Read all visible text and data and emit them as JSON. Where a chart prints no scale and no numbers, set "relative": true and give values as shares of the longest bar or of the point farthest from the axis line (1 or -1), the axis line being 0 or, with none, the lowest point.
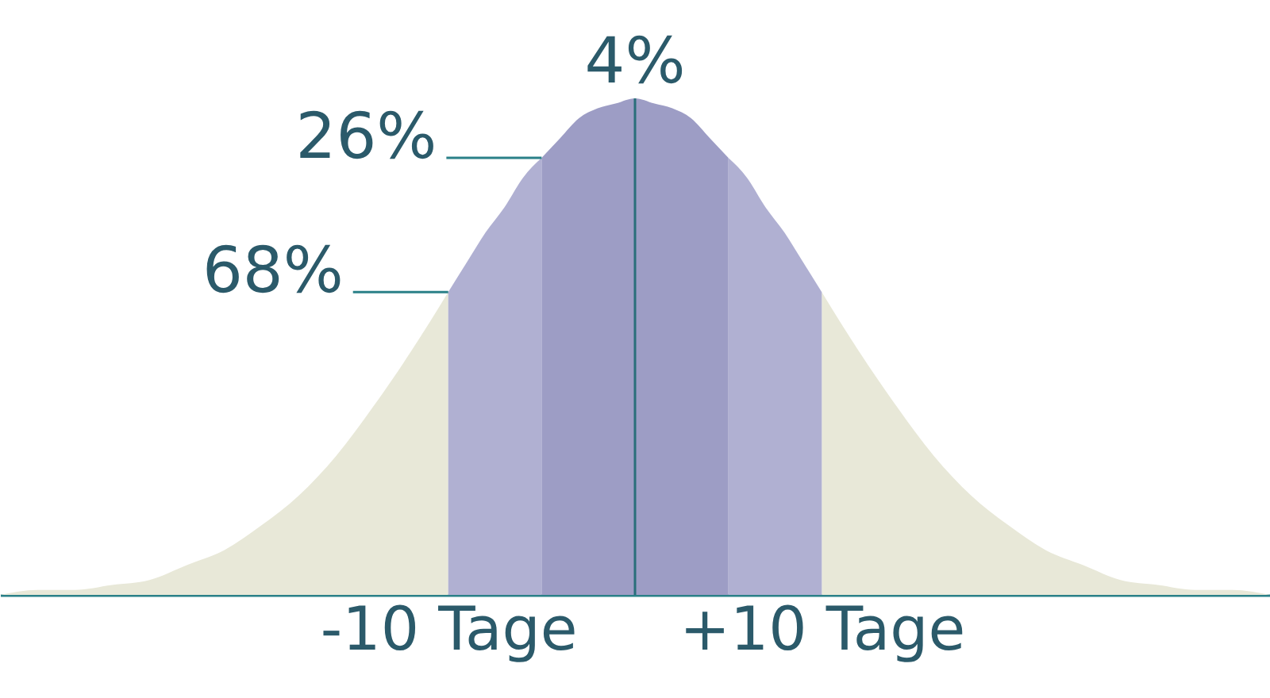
{
  "chart_data": {
    "type": "area",
    "relative": true,
    "series": [
      {
        "color": "#e8e8d8",
        "x": [
          -34,
          -32,
          -30,
          -28,
          -26,
          -24,
          -22,
          -20,
          -18,
          -16,
          -14,
          -12,
          -10,
          0,
          10,
          12,
          14,
          16,
          18,
          20,
          22,
          24,
          26,
          28,
          30,
          32,
          34
        ],
        "values": [
          0,
          0.01,
          0.01,
          0.02,
          0.03,
          0.06,
          0.09,
          0.14,
          0.2,
          0.28,
          0.38,
          0.49,
          0.61,
          null,
          0.61,
          0.49,
          0.38,
          0.28,
          0.2,
          0.14,
          0.09,
          0.06,
          0.03,
          0.02,
          0.01,
          0.01,
          0
        ]
      },
      {
        "color": "#b0b0d2",
        "x": [
          -10,
          -9,
          -8,
          -7,
          -6,
          -5,
          0,
          5,
          6,
          7,
          8,
          9,
          10
        ],
        "values": [
          0.61,
          0.67,
          0.73,
          0.78,
          0.84,
          0.88,
          null,
          0.88,
          0.84,
          0.78,
          0.73,
          0.67,
          0.61
        ]
      },
      {
        "color": "#9d9dc5",
        "x": [
          -5,
          -4,
          -3,
          -2,
          -1,
          0,
          1,
          2,
          3,
          4,
          5
        ],
        "values": [
          0.88,
          0.92,
          0.96,
          0.98,
          0.99,
          1,
          0.99,
          0.98,
          0.96,
          0.92,
          0.88
        ]
      }
    ],
    "xlim": [
      -34,
      34
    ],
    "xticks": [
      {
        "value": -10,
        "label": "-10 Tage"
      },
      {
        "value": 10,
        "label": "+10 Tage"
      }
    ],
    "tick_labels": "x",
    "grid": false,
    "ref_lines": [
      {
        "axis": "x",
        "value": 0,
        "color": "#2a6f7a"
      }
    ],
    "annotations": [
      {
        "text": "4%",
        "x": 0,
        "y": 1
      },
      {
        "text": "26%",
        "x": -5,
        "y": 0.88
      },
      {
        "text": "68%",
        "x": -10,
        "y": 0.61
      }
    ]
  }
}
